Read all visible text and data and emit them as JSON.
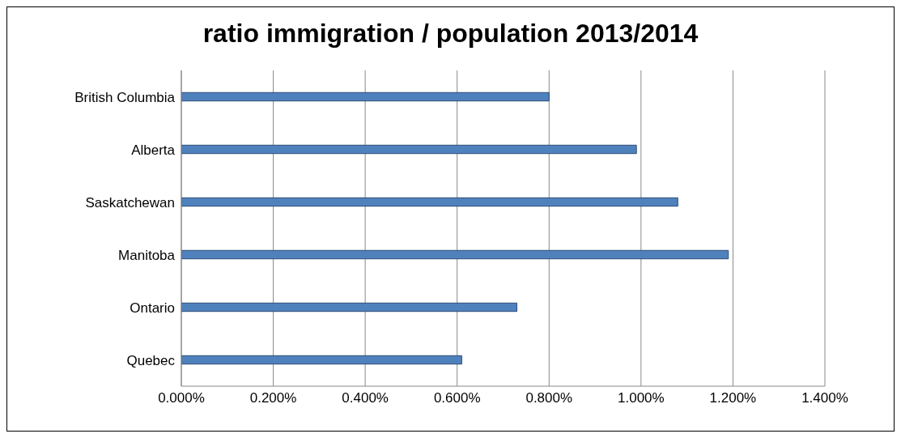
{
  "chart_data": {
    "type": "bar",
    "orientation": "horizontal",
    "title": "ratio immigration / population 2013/2014",
    "categories": [
      "British Columbia",
      "Alberta",
      "Saskatchewan",
      "Manitoba",
      "Ontario",
      "Quebec"
    ],
    "values": [
      0.8,
      0.99,
      1.08,
      1.19,
      0.73,
      0.61
    ],
    "color": "#4f81bd",
    "xlim": [
      0,
      1.4
    ],
    "xticks": [
      {
        "value": 0,
        "label": "0.000%"
      },
      {
        "value": 0.2,
        "label": "0.200%"
      },
      {
        "value": 0.4,
        "label": "0.400%"
      },
      {
        "value": 0.6,
        "label": "0.600%"
      },
      {
        "value": 0.8,
        "label": "0.800%"
      },
      {
        "value": 1.0,
        "label": "1.000%"
      },
      {
        "value": 1.2,
        "label": "1.200%"
      },
      {
        "value": 1.4,
        "label": "1.400%"
      }
    ],
    "grid": "x"
  }
}
